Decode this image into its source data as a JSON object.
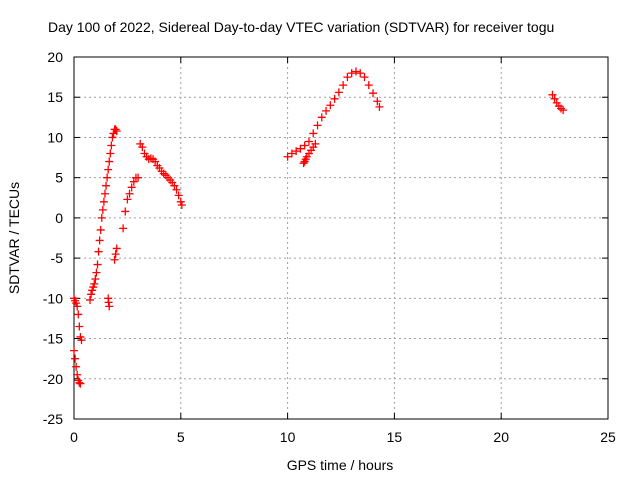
{
  "chart_data": {
    "type": "scatter",
    "title": "Day 100 of 2022, Sidereal Day-to-day VTEC variation (SDTVAR) for receiver togu",
    "xlabel": "GPS time / hours",
    "ylabel": "SDTVAR / TECUs",
    "xlim": [
      0,
      25
    ],
    "ylim": [
      -25,
      20
    ],
    "xticks": [
      0,
      5,
      10,
      15,
      20,
      25
    ],
    "yticks": [
      -25,
      -20,
      -15,
      -10,
      -5,
      0,
      5,
      10,
      15,
      20
    ],
    "grid": true,
    "legend": "none",
    "marker": "plus",
    "color": "#ff0000",
    "series": [
      {
        "x": [
          0.0,
          0.05,
          0.1,
          0.15,
          0.2,
          0.25,
          0.3,
          0.35
        ],
        "y": [
          -10.0,
          -10.3,
          -10.6,
          -11.0,
          -12.0,
          -13.5,
          -14.8,
          -15.2
        ]
      },
      {
        "x": [
          0.0,
          0.05,
          0.1,
          0.15,
          0.2,
          0.25,
          0.3
        ],
        "y": [
          -16.5,
          -17.5,
          -18.5,
          -19.5,
          -20.2,
          -20.5,
          -20.6
        ]
      },
      {
        "x": [
          0.75,
          0.8,
          0.85,
          0.9,
          0.95,
          1.0,
          1.05,
          1.1,
          1.15,
          1.2,
          1.25,
          1.3,
          1.35,
          1.4,
          1.45,
          1.5,
          1.55,
          1.6,
          1.65,
          1.7,
          1.75,
          1.8,
          1.85,
          1.9,
          1.95,
          2.0
        ],
        "y": [
          -10.2,
          -9.5,
          -9.0,
          -8.6,
          -8.2,
          -7.6,
          -6.8,
          -5.8,
          -4.2,
          -2.8,
          -1.5,
          0.0,
          1.0,
          2.0,
          3.0,
          4.0,
          5.0,
          6.0,
          7.0,
          8.0,
          9.0,
          10.0,
          10.5,
          11.0,
          11.0,
          10.8
        ]
      },
      {
        "x": [
          1.6,
          1.62,
          1.65
        ],
        "y": [
          -10.0,
          -10.5,
          -11.0
        ]
      },
      {
        "x": [
          1.9,
          1.95,
          2.0
        ],
        "y": [
          -5.2,
          -4.5,
          -3.8
        ]
      },
      {
        "x": [
          2.3,
          2.4,
          2.5,
          2.6,
          2.7,
          2.8,
          2.9,
          3.0
        ],
        "y": [
          -1.3,
          0.8,
          2.3,
          3.0,
          3.8,
          4.5,
          5.0,
          5.0
        ]
      },
      {
        "x": [
          3.1,
          3.2,
          3.3,
          3.4,
          3.5,
          3.6,
          3.7,
          3.8,
          3.9,
          4.0,
          4.1,
          4.2,
          4.3,
          4.4,
          4.5,
          4.6,
          4.7,
          4.8,
          4.9,
          5.0,
          5.05
        ],
        "y": [
          9.2,
          8.8,
          8.0,
          7.6,
          7.3,
          7.4,
          7.3,
          7.0,
          6.5,
          6.2,
          5.8,
          5.5,
          5.3,
          5.0,
          4.7,
          4.4,
          4.0,
          3.5,
          2.8,
          2.0,
          1.6
        ]
      },
      {
        "x": [
          10.0,
          10.2,
          10.4,
          10.6,
          10.8,
          11.0,
          11.2,
          11.4,
          11.6,
          11.8,
          12.0,
          12.2,
          12.4,
          12.6,
          12.8,
          13.0,
          13.2,
          13.4,
          13.6,
          13.8,
          14.0,
          14.2,
          14.3
        ],
        "y": [
          7.6,
          8.0,
          8.3,
          8.6,
          9.0,
          9.5,
          10.5,
          11.5,
          12.5,
          13.3,
          14.0,
          14.8,
          15.6,
          16.5,
          17.5,
          18.0,
          18.2,
          18.0,
          17.5,
          16.5,
          15.5,
          14.5,
          13.8
        ]
      },
      {
        "x": [
          10.75,
          10.8,
          10.85,
          10.9,
          11.0,
          11.1,
          11.2,
          11.3
        ],
        "y": [
          6.8,
          7.0,
          7.3,
          7.6,
          8.0,
          8.4,
          8.8,
          9.2
        ]
      },
      {
        "x": [
          22.4,
          22.5,
          22.6,
          22.7,
          22.8,
          22.9
        ],
        "y": [
          15.3,
          14.8,
          14.3,
          13.9,
          13.6,
          13.4
        ]
      }
    ]
  }
}
